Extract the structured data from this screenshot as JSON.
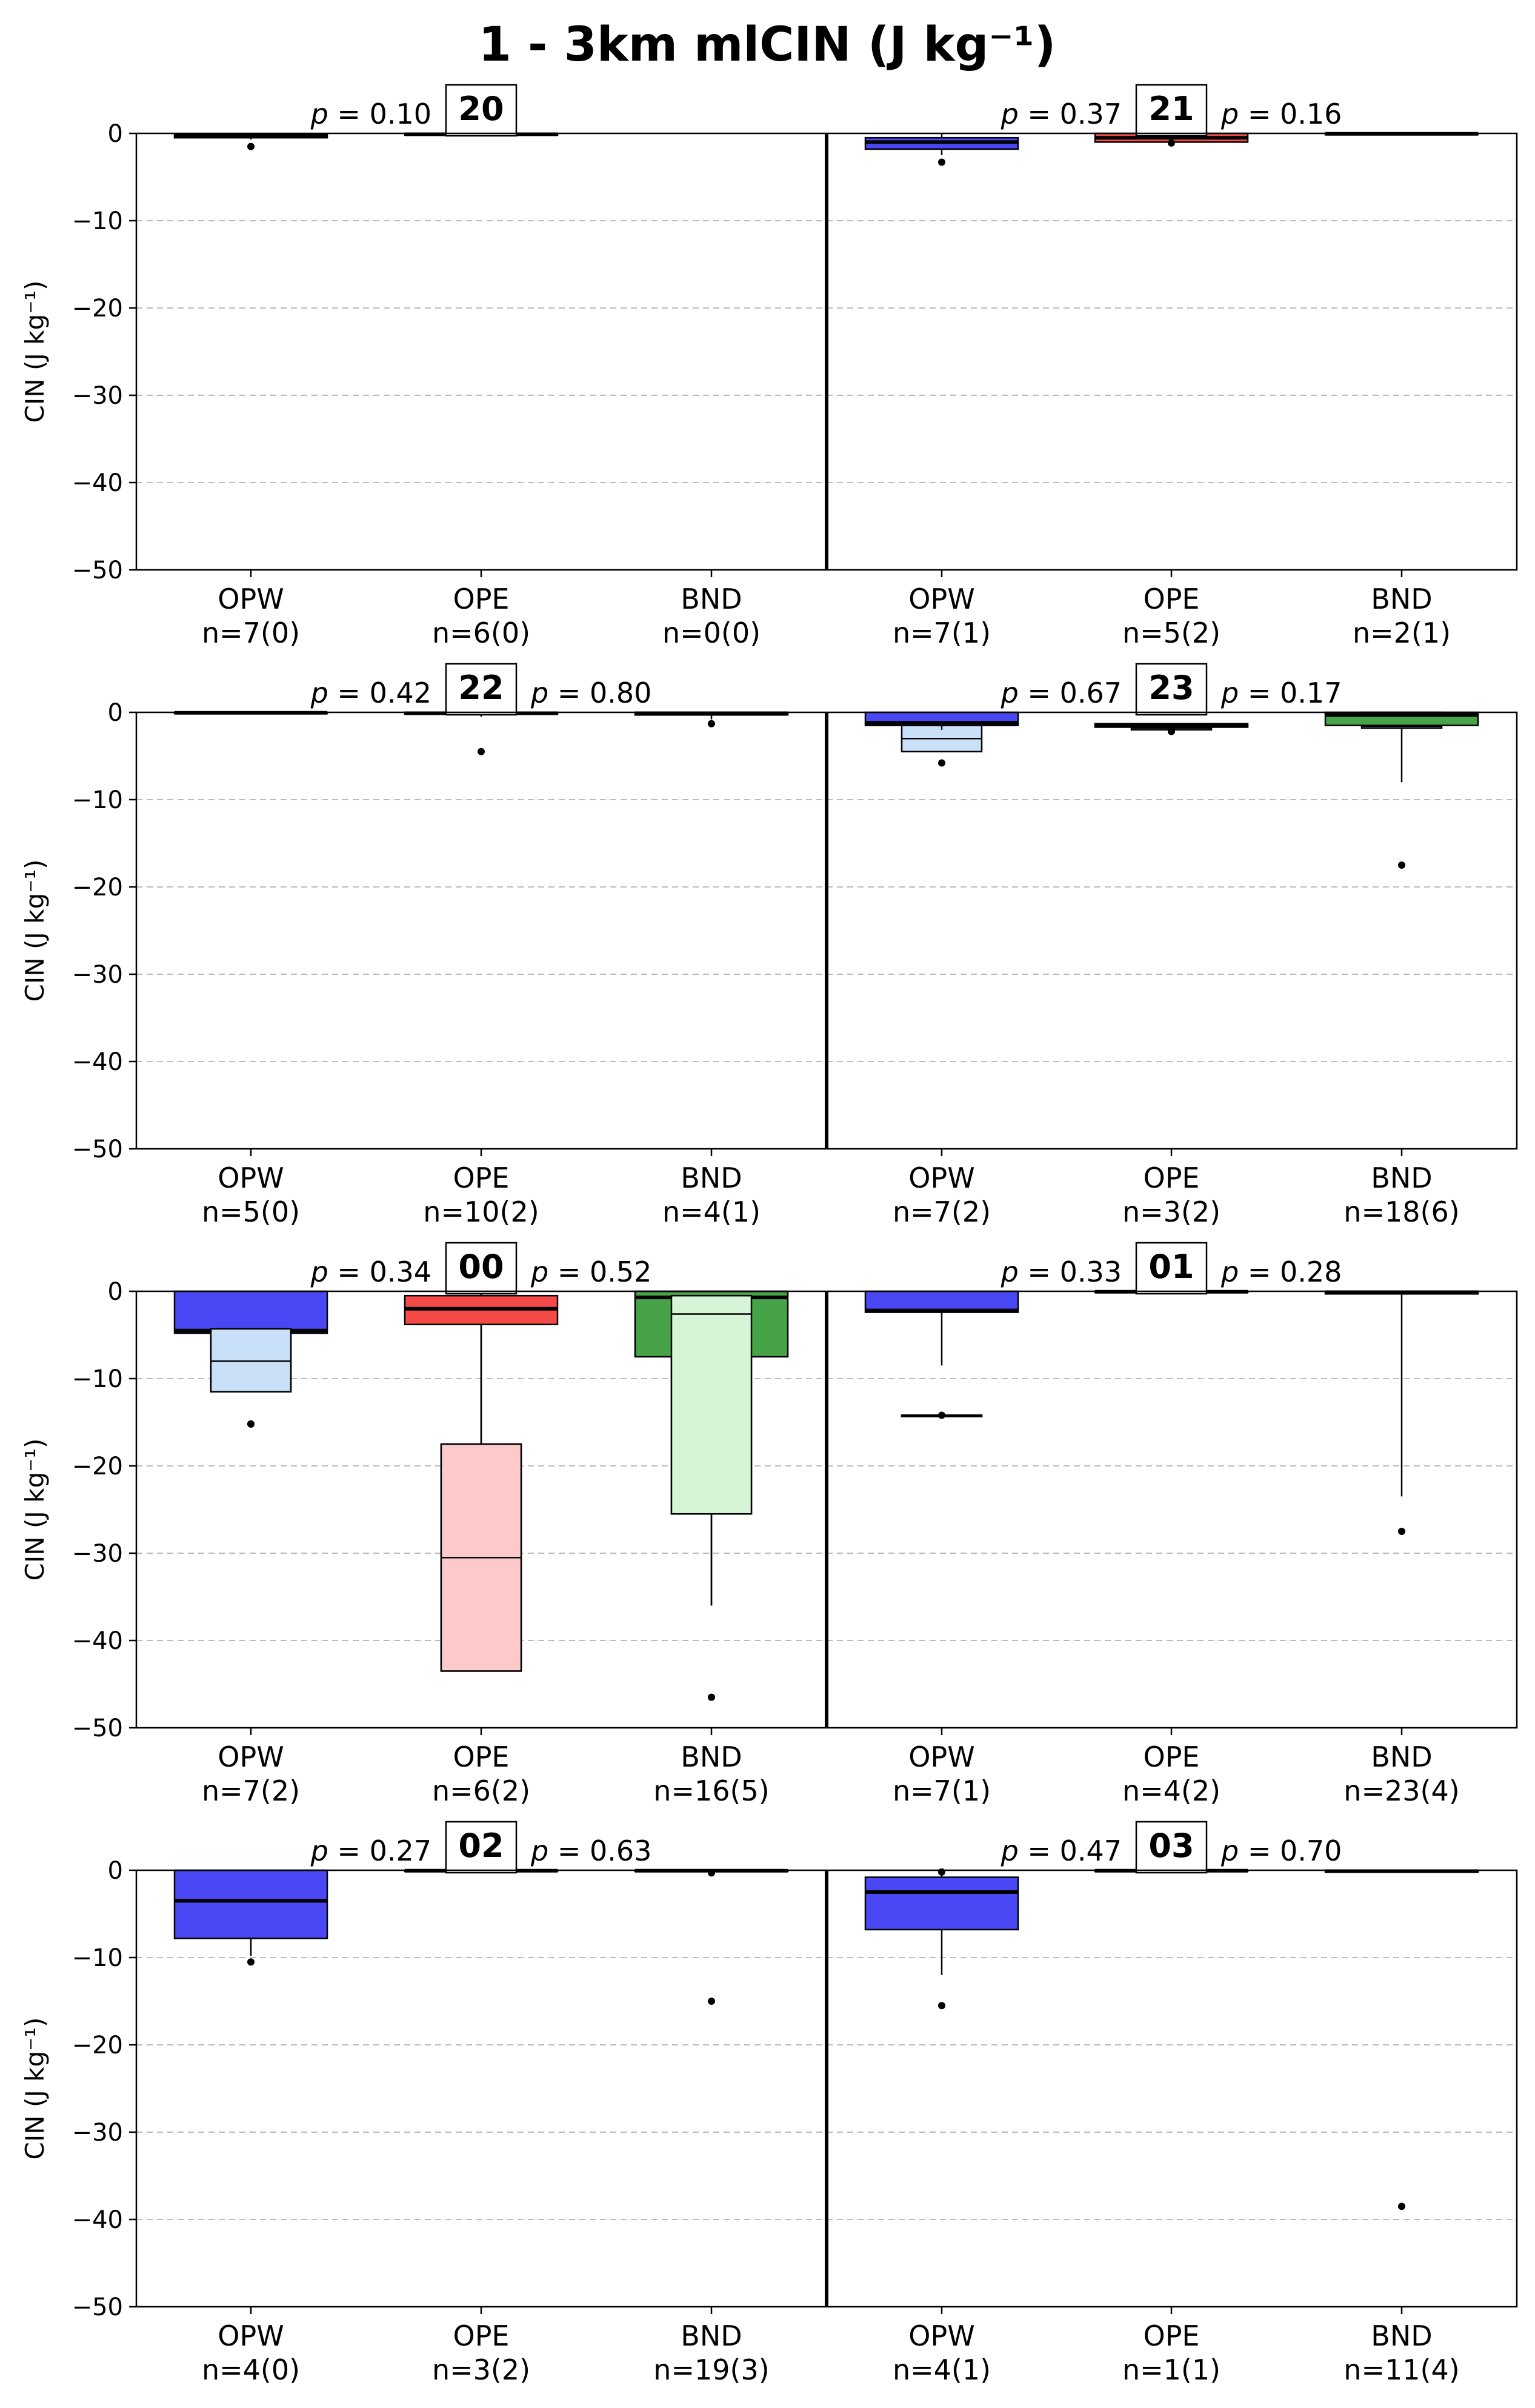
{
  "title": "1 - 3km mlCIN (J kg⁻¹)",
  "ylabel": "CIN (J kg⁻¹)",
  "colors": {
    "OPW": {
      "q_outer": "#4a48f4",
      "q_inner": "#c8e0f8"
    },
    "OPE": {
      "q_outer": "#f54a48",
      "q_inner": "#fccacb"
    },
    "BND": {
      "q_outer": "#47a347",
      "q_inner": "#d6f5d6"
    },
    "grid": "#bbbbbb"
  },
  "chart_data": [
    {
      "type": "box",
      "row": 0,
      "hour_label": "20",
      "ylim": [
        -50,
        0
      ],
      "yticks": [
        0,
        -10,
        -20,
        -30,
        -40,
        -50
      ],
      "grid": true,
      "left": {
        "p_values": [
          "0.10",
          ""
        ],
        "groups": [
          {
            "name": "OPW",
            "n_label": "n=7(0)",
            "outer": {
              "q1": -0.5,
              "median": -0.3,
              "q3": -0.1,
              "whisker_low": -0.7,
              "whisker_high": 0,
              "outliers": [
                -1.5
              ]
            },
            "inner": null
          },
          {
            "name": "OPE",
            "n_label": "n=6(0)",
            "outer": {
              "q1": -0.2,
              "median": -0.1,
              "q3": 0,
              "whisker_low": -0.2,
              "whisker_high": 0,
              "outliers": []
            },
            "inner": null
          },
          {
            "name": "BND",
            "n_label": "n=0(0)",
            "outer": null,
            "inner": null
          }
        ]
      },
      "right": {
        "p_values": [
          "0.37",
          "0.16"
        ],
        "groups": [
          {
            "name": "OPW",
            "n_label": "n=7(1)",
            "outer": {
              "q1": -1.8,
              "median": -1.0,
              "q3": -0.5,
              "whisker_low": -2.5,
              "whisker_high": 0,
              "outliers": [
                -3.3
              ]
            },
            "inner": null
          },
          {
            "name": "OPE",
            "n_label": "n=5(2)",
            "outer": {
              "q1": -1.0,
              "median": -0.5,
              "q3": 0,
              "whisker_low": -1.2,
              "whisker_high": 0,
              "outliers": [
                -1.1
              ]
            },
            "inner": null
          },
          {
            "name": "BND",
            "n_label": "n=2(1)",
            "outer": {
              "q1": -0.1,
              "median": -0.05,
              "q3": 0,
              "whisker_low": -0.1,
              "whisker_high": 0,
              "outliers": []
            },
            "inner": null
          }
        ]
      }
    },
    {
      "type": "box",
      "row": 1,
      "hour_label": "22",
      "ylim": [
        -50,
        0
      ],
      "yticks": [
        0,
        -10,
        -20,
        -30,
        -40,
        -50
      ],
      "grid": true,
      "left": {
        "p_values": [
          "0.42",
          "0.80"
        ],
        "groups": [
          {
            "name": "OPW",
            "n_label": "n=5(0)",
            "outer": {
              "q1": -0.1,
              "median": -0.05,
              "q3": 0,
              "whisker_low": -0.1,
              "whisker_high": 0,
              "outliers": []
            },
            "inner": null
          },
          {
            "name": "OPE",
            "n_label": "n=10(2)",
            "outer": {
              "q1": -0.2,
              "median": -0.1,
              "q3": 0,
              "whisker_low": -0.5,
              "whisker_high": 0,
              "outliers": [
                -4.5
              ]
            },
            "inner": null
          },
          {
            "name": "BND",
            "n_label": "n=4(1)",
            "outer": {
              "q1": -0.3,
              "median": -0.1,
              "q3": 0,
              "whisker_low": -0.8,
              "whisker_high": 0,
              "outliers": [
                -1.3
              ]
            },
            "inner": null
          }
        ]
      },
      "right": {
        "p_values": [
          "0.67",
          "0.17"
        ],
        "hour_label": "23",
        "groups": [
          {
            "name": "OPW",
            "n_label": "n=7(2)",
            "outer": {
              "q1": -1.5,
              "median": -1.2,
              "q3": 0,
              "whisker_low": -2.0,
              "whisker_high": 0,
              "outliers": []
            },
            "inner": {
              "q1": -4.5,
              "median": -3.0,
              "q3": -1.5,
              "whisker_low": -4.5,
              "whisker_high": 0,
              "outliers": [
                -5.8
              ]
            }
          },
          {
            "name": "OPE",
            "n_label": "n=3(2)",
            "outer": {
              "q1": -1.7,
              "median": -1.5,
              "q3": -1.3,
              "whisker_low": -1.8,
              "whisker_high": -1.2,
              "outliers": [
                -2.2
              ]
            },
            "inner": {
              "q1": -2.0,
              "median": -1.8,
              "q3": -1.6,
              "whisker_low": -2.0,
              "whisker_high": -1.6,
              "outliers": [
                -1.8
              ]
            }
          },
          {
            "name": "BND",
            "n_label": "n=18(6)",
            "outer": {
              "q1": -1.5,
              "median": -0.3,
              "q3": 0,
              "whisker_low": -1.5,
              "whisker_high": 0,
              "outliers": []
            },
            "inner": {
              "q1": -1.8,
              "median": -1.6,
              "q3": 0,
              "whisker_low": -8.0,
              "whisker_high": 0,
              "outliers": [
                -17.5
              ]
            }
          }
        ]
      }
    },
    {
      "type": "box",
      "row": 2,
      "hour_label": "00",
      "ylim": [
        -50,
        0
      ],
      "yticks": [
        0,
        -10,
        -20,
        -30,
        -40,
        -50
      ],
      "grid": true,
      "left": {
        "p_values": [
          "0.34",
          "0.52"
        ],
        "groups": [
          {
            "name": "OPW",
            "n_label": "n=7(2)",
            "outer": {
              "q1": -4.8,
              "median": -4.5,
              "q3": 0,
              "whisker_low": -4.8,
              "whisker_high": 0,
              "outliers": []
            },
            "inner": {
              "q1": -11.5,
              "median": -8.0,
              "q3": -4.3,
              "whisker_low": -11.5,
              "whisker_high": -4.3,
              "outliers": [
                -15.2
              ]
            }
          },
          {
            "name": "OPE",
            "n_label": "n=6(2)",
            "outer": {
              "q1": -3.8,
              "median": -2.0,
              "q3": -0.5,
              "whisker_low": -3.8,
              "whisker_high": 0,
              "outliers": []
            },
            "inner": {
              "q1": -43.5,
              "median": -30.5,
              "q3": -17.5,
              "whisker_low": -43.5,
              "whisker_high": -3.8,
              "outliers": []
            }
          },
          {
            "name": "BND",
            "n_label": "n=16(5)",
            "outer": {
              "q1": -7.5,
              "median": -0.7,
              "q3": 0,
              "whisker_low": -7.5,
              "whisker_high": 0,
              "outliers": []
            },
            "inner": {
              "q1": -25.5,
              "median": -2.6,
              "q3": -0.5,
              "whisker_low": -36.0,
              "whisker_high": -7.5,
              "outliers": [
                -46.5
              ]
            }
          }
        ]
      },
      "right": {
        "p_values": [
          "0.33",
          "0.28"
        ],
        "hour_label": "01",
        "groups": [
          {
            "name": "OPW",
            "n_label": "n=7(1)",
            "outer": {
              "q1": -2.4,
              "median": -2.2,
              "q3": 0,
              "whisker_low": -8.5,
              "whisker_high": 0,
              "outliers": [
                -14.2
              ]
            },
            "inner": {
              "q1": -14.2,
              "median": -14.2,
              "q3": -14.2,
              "whisker_low": -14.2,
              "whisker_high": -14.2,
              "outliers": []
            }
          },
          {
            "name": "OPE",
            "n_label": "n=4(2)",
            "outer": {
              "q1": -0.1,
              "median": -0.05,
              "q3": 0,
              "whisker_low": -0.1,
              "whisker_high": 0,
              "outliers": []
            },
            "inner": null
          },
          {
            "name": "BND",
            "n_label": "n=23(4)",
            "outer": {
              "q1": -0.3,
              "median": -0.1,
              "q3": 0,
              "whisker_low": -23.5,
              "whisker_high": 0,
              "outliers": [
                -27.5
              ]
            },
            "inner": null
          }
        ]
      }
    },
    {
      "type": "box",
      "row": 3,
      "hour_label": "02",
      "ylim": [
        -50,
        0
      ],
      "yticks": [
        0,
        -10,
        -20,
        -30,
        -40,
        -50
      ],
      "grid": true,
      "left": {
        "p_values": [
          "0.27",
          "0.63"
        ],
        "groups": [
          {
            "name": "OPW",
            "n_label": "n=4(0)",
            "outer": {
              "q1": -7.8,
              "median": -3.5,
              "q3": 0,
              "whisker_low": -9.8,
              "whisker_high": 0,
              "outliers": [
                -10.5
              ]
            },
            "inner": null
          },
          {
            "name": "OPE",
            "n_label": "n=3(2)",
            "outer": {
              "q1": -0.1,
              "median": -0.05,
              "q3": 0,
              "whisker_low": -0.1,
              "whisker_high": 0,
              "outliers": []
            },
            "inner": null
          },
          {
            "name": "BND",
            "n_label": "n=19(3)",
            "outer": {
              "q1": -0.1,
              "median": -0.05,
              "q3": 0,
              "whisker_low": -0.2,
              "whisker_high": 0,
              "outliers": [
                -0.3,
                -15.0
              ]
            },
            "inner": null
          }
        ]
      },
      "right": {
        "p_values": [
          "0.47",
          "0.70"
        ],
        "hour_label": "03",
        "groups": [
          {
            "name": "OPW",
            "n_label": "n=4(1)",
            "outer": {
              "q1": -6.8,
              "median": -2.5,
              "q3": -0.8,
              "whisker_low": -12.0,
              "whisker_high": 0,
              "outliers": [
                -15.5,
                -0.2
              ]
            },
            "inner": {
              "q1": -4.0,
              "median": -4.0,
              "q3": -4.0,
              "whisker_low": -4.0,
              "whisker_high": -4.0,
              "outliers": []
            }
          },
          {
            "name": "OPE",
            "n_label": "n=1(1)",
            "outer": {
              "q1": -0.1,
              "median": -0.05,
              "q3": 0,
              "whisker_low": -0.1,
              "whisker_high": 0,
              "outliers": []
            },
            "inner": null
          },
          {
            "name": "BND",
            "n_label": "n=11(4)",
            "outer": {
              "q1": -0.2,
              "median": -0.1,
              "q3": 0,
              "whisker_low": -0.3,
              "whisker_high": 0,
              "outliers": [
                -38.5
              ]
            },
            "inner": null
          }
        ]
      }
    }
  ],
  "right_hour_labels": [
    "21",
    "23",
    "01",
    "03"
  ]
}
